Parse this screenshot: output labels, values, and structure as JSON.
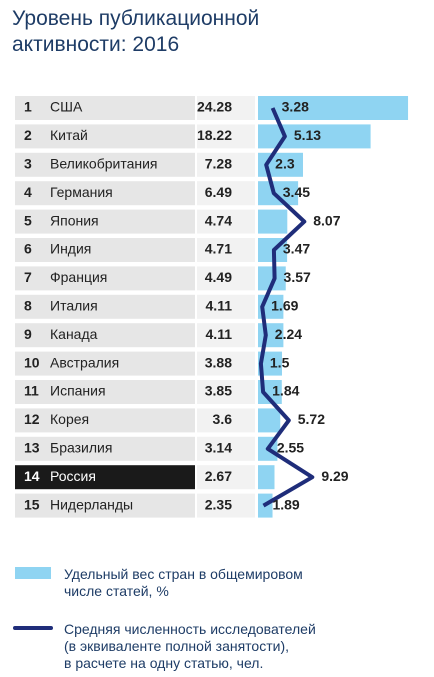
{
  "chart_data": {
    "type": "bar-line",
    "title": "Уровень публикационной\nактивности: 2016",
    "ranks": [
      1,
      2,
      3,
      4,
      5,
      6,
      7,
      8,
      9,
      10,
      11,
      12,
      13,
      14,
      15
    ],
    "categories": [
      "США",
      "Китай",
      "Великобритания",
      "Германия",
      "Япония",
      "Индия",
      "Франция",
      "Италия",
      "Канада",
      "Австралия",
      "Испания",
      "Корея",
      "Бразилия",
      "Россия",
      "Нидерланды"
    ],
    "highlight_category": "Россия",
    "series": [
      {
        "name": "Удельный вес стран в общемировом\nчисле статей, %",
        "type": "bar",
        "color": "#8fd4f2",
        "values": [
          24.28,
          18.22,
          7.28,
          6.49,
          4.74,
          4.71,
          4.49,
          4.11,
          4.11,
          3.88,
          3.85,
          3.6,
          3.14,
          2.67,
          2.35
        ]
      },
      {
        "name": "Средняя численность исследователей\n(в эквиваленте полной занятости),\nв расчете на одну статью, чел.",
        "type": "line",
        "color": "#1f2d7a",
        "values": [
          3.28,
          5.13,
          2.3,
          3.45,
          8.07,
          3.47,
          3.57,
          1.69,
          2.24,
          1.5,
          1.84,
          5.72,
          2.55,
          9.29,
          1.89
        ]
      }
    ]
  }
}
